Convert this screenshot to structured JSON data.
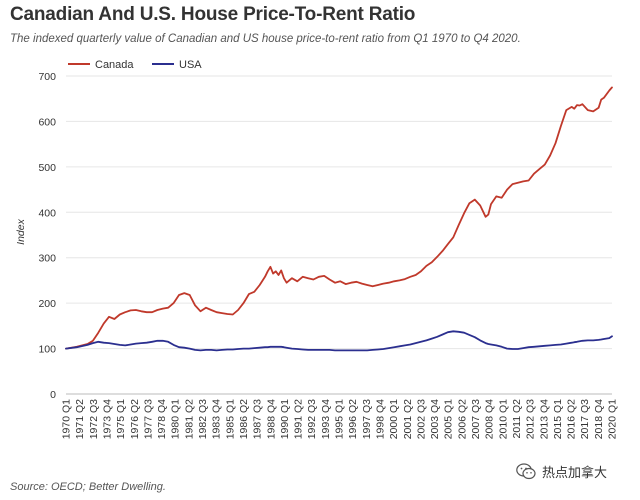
{
  "title": "Canadian And U.S. House Price-To-Rent Ratio",
  "subtitle": "The indexed quarterly value of Canadian and US house price-to-rent ratio from Q1 1970 to Q4 2020.",
  "source": "Source: OECD; Better Dwelling.",
  "watermark": "热点加拿大",
  "colors": {
    "canada": "#c0392b",
    "usa": "#2b2f8f",
    "grid": "#e6e6e6",
    "axis_text": "#333333"
  },
  "chart_data": {
    "type": "line",
    "title": "Canadian And U.S. House Price-To-Rent Ratio",
    "xlabel": "",
    "ylabel": "Index",
    "ylim": [
      0,
      700
    ],
    "yticks": [
      0,
      100,
      200,
      300,
      400,
      500,
      600,
      700
    ],
    "grid": true,
    "legend_position": "top-left",
    "xtick_labels": [
      "1970 Q1",
      "1971 Q2",
      "1972 Q3",
      "1973 Q4",
      "1975 Q1",
      "1976 Q2",
      "1977 Q3",
      "1978 Q4",
      "1980 Q1",
      "1981 Q2",
      "1982 Q3",
      "1983 Q4",
      "1985 Q1",
      "1986 Q2",
      "1987 Q3",
      "1988 Q4",
      "1990 Q1",
      "1991 Q2",
      "1992 Q3",
      "1993 Q4",
      "1995 Q1",
      "1996 Q2",
      "1997 Q3",
      "1998 Q4",
      "2000 Q1",
      "2001 Q2",
      "2002 Q3",
      "2003 Q4",
      "2005 Q1",
      "2006 Q2",
      "2007 Q3",
      "2008 Q4",
      "2010 Q1",
      "2011 Q2",
      "2012 Q3",
      "2013 Q4",
      "2015 Q1",
      "2016 Q2",
      "2017 Q3",
      "2018 Q4",
      "2020 Q1"
    ],
    "x": [
      1970.0,
      1971.0,
      1972.0,
      1972.5,
      1973.0,
      1973.5,
      1974.0,
      1974.5,
      1975.0,
      1975.5,
      1976.0,
      1976.5,
      1977.0,
      1977.5,
      1978.0,
      1978.5,
      1979.0,
      1979.5,
      1980.0,
      1980.5,
      1981.0,
      1981.5,
      1982.0,
      1982.5,
      1983.0,
      1983.5,
      1984.0,
      1984.5,
      1985.0,
      1985.5,
      1986.0,
      1986.5,
      1987.0,
      1987.5,
      1988.0,
      1988.5,
      1988.75,
      1989.0,
      1989.25,
      1989.5,
      1989.75,
      1990.0,
      1990.25,
      1990.5,
      1991.0,
      1991.5,
      1992.0,
      1992.5,
      1993.0,
      1993.5,
      1994.0,
      1994.5,
      1995.0,
      1995.5,
      1996.0,
      1996.5,
      1997.0,
      1997.5,
      1998.0,
      1998.5,
      1999.0,
      1999.5,
      2000.0,
      2000.5,
      2001.0,
      2001.5,
      2002.0,
      2002.5,
      2003.0,
      2003.5,
      2004.0,
      2004.5,
      2005.0,
      2005.5,
      2006.0,
      2006.5,
      2007.0,
      2007.5,
      2008.0,
      2008.5,
      2009.0,
      2009.25,
      2009.5,
      2010.0,
      2010.5,
      2011.0,
      2011.5,
      2012.0,
      2012.5,
      2013.0,
      2013.5,
      2014.0,
      2014.5,
      2015.0,
      2015.5,
      2016.0,
      2016.5,
      2017.0,
      2017.25,
      2017.5,
      2017.75,
      2018.0,
      2018.5,
      2019.0,
      2019.5,
      2019.75,
      2020.0,
      2020.5,
      2020.75
    ],
    "series": [
      {
        "name": "Canada",
        "color": "#c0392b",
        "values": [
          100,
          104,
          110,
          117,
          135,
          155,
          170,
          165,
          175,
          180,
          184,
          185,
          182,
          180,
          180,
          185,
          188,
          190,
          200,
          218,
          222,
          218,
          195,
          182,
          190,
          185,
          180,
          178,
          176,
          175,
          185,
          200,
          220,
          225,
          240,
          258,
          270,
          280,
          265,
          270,
          262,
          272,
          255,
          245,
          255,
          248,
          258,
          255,
          252,
          258,
          260,
          252,
          245,
          248,
          242,
          245,
          247,
          243,
          240,
          237,
          240,
          243,
          245,
          248,
          250,
          253,
          258,
          262,
          270,
          282,
          290,
          302,
          315,
          330,
          345,
          372,
          398,
          420,
          428,
          415,
          390,
          395,
          418,
          435,
          432,
          450,
          462,
          465,
          468,
          470,
          485,
          495,
          505,
          525,
          552,
          590,
          625,
          632,
          628,
          636,
          635,
          638,
          625,
          622,
          630,
          648,
          652,
          668,
          675
        ]
      },
      {
        "name": "USA",
        "color": "#2b2f8f",
        "values": [
          100,
          103,
          108,
          112,
          115,
          113,
          112,
          110,
          108,
          107,
          109,
          111,
          112,
          113,
          115,
          117,
          117,
          115,
          108,
          103,
          102,
          100,
          97,
          96,
          97,
          97,
          96,
          97,
          98,
          98,
          99,
          100,
          100,
          101,
          102,
          103,
          103,
          104,
          104,
          104,
          104,
          104,
          103,
          102,
          100,
          99,
          98,
          97,
          97,
          97,
          97,
          97,
          96,
          96,
          96,
          96,
          96,
          96,
          96,
          97,
          98,
          99,
          101,
          103,
          105,
          107,
          109,
          112,
          115,
          118,
          122,
          126,
          131,
          136,
          138,
          137,
          135,
          130,
          125,
          118,
          112,
          110,
          109,
          107,
          104,
          100,
          99,
          99,
          101,
          103,
          104,
          105,
          106,
          107,
          108,
          109,
          111,
          113,
          114,
          115,
          116,
          117,
          118,
          118,
          119,
          120,
          121,
          123,
          127
        ]
      }
    ]
  }
}
